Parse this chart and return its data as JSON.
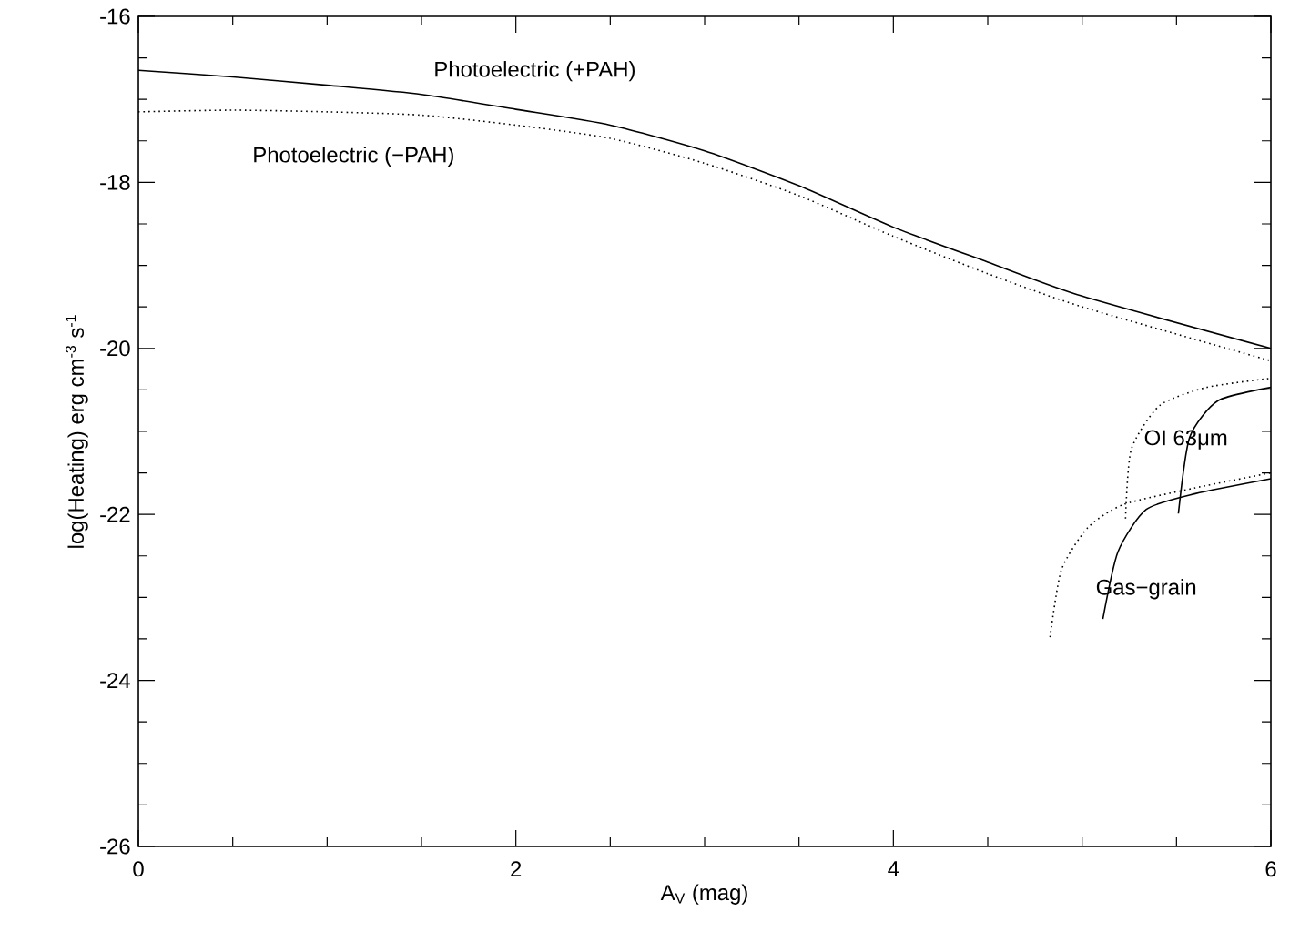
{
  "chart_data": {
    "type": "line",
    "xlabel": "A$_{V}$ (mag)",
    "ylabel": "log(Heating) erg cm$^{-3}$ s$^{-1}$",
    "xlim": [
      0,
      6
    ],
    "ylim": [
      -26,
      -16
    ],
    "xticks": [
      0,
      2,
      4,
      6
    ],
    "yticks": [
      -26,
      -24,
      -22,
      -20,
      -18,
      -16
    ],
    "grid": false,
    "marker": "none",
    "series": [
      {
        "color": "#000000",
        "line_style": "solid",
        "x": [
          0,
          0.5,
          1,
          1.5,
          2,
          2.5,
          3,
          3.5,
          4,
          4.5,
          5,
          6
        ],
        "values": [
          -16.65,
          -16.73,
          -16.83,
          -16.94,
          -17.12,
          -17.31,
          -17.62,
          -18.04,
          -18.54,
          -18.96,
          -19.37,
          -20.0
        ]
      },
      {
        "color": "#000000",
        "line_style": "dotted",
        "x": [
          0,
          0.5,
          1,
          1.5,
          2,
          2.5,
          3,
          3.5,
          4,
          4.5,
          5,
          6
        ],
        "values": [
          -17.15,
          -17.13,
          -17.15,
          -17.19,
          -17.31,
          -17.47,
          -17.77,
          -18.16,
          -18.65,
          -19.1,
          -19.5,
          -20.15
        ]
      },
      {
        "color": "#000000",
        "line_style": "dotted",
        "x": [
          4.83,
          4.89,
          5.03,
          5.22,
          5.6,
          6.0
        ],
        "values": [
          -23.48,
          -22.67,
          -22.16,
          -21.88,
          -21.68,
          -21.5
        ]
      },
      {
        "color": "#000000",
        "line_style": "solid",
        "x": [
          5.11,
          5.19,
          5.34,
          5.6,
          6.0
        ],
        "values": [
          -23.26,
          -22.45,
          -21.94,
          -21.75,
          -21.57
        ]
      },
      {
        "color": "#000000",
        "line_style": "dotted",
        "x": [
          5.23,
          5.26,
          5.41,
          5.66,
          6.0
        ],
        "values": [
          -22.05,
          -21.22,
          -20.69,
          -20.47,
          -20.36
        ]
      },
      {
        "color": "#000000",
        "line_style": "solid",
        "x": [
          5.51,
          5.57,
          5.72,
          6.0
        ],
        "values": [
          -21.99,
          -21.07,
          -20.63,
          -20.47
        ]
      }
    ],
    "annotations": [
      "Photoelectric (+PAH)",
      "Photoelectric (−PAH)",
      "OI 63μm",
      "Gas−grain"
    ]
  }
}
